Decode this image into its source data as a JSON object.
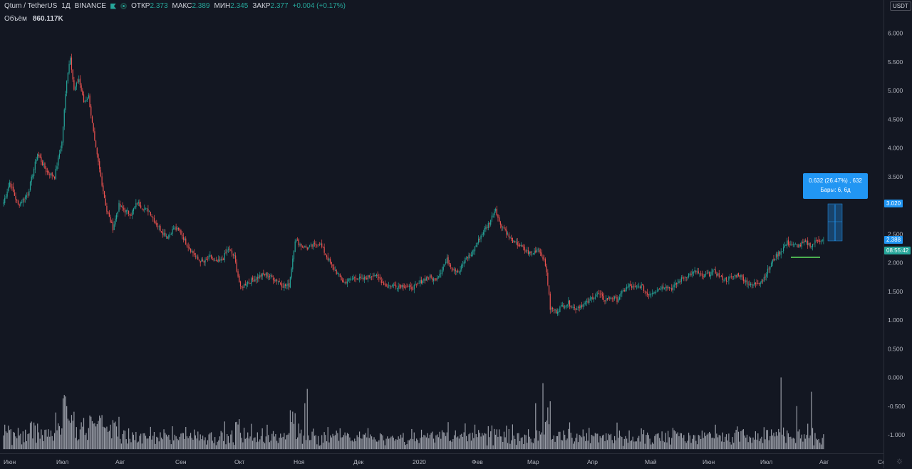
{
  "header": {
    "symbol": "Qtum / TetherUS",
    "interval": "1Д",
    "exchange": "BINANCE",
    "open_label": "ОТКР",
    "open": "2.373",
    "high_label": "МАКС",
    "high": "2.389",
    "low_label": "МИН",
    "low": "2.345",
    "close_label": "ЗАКР",
    "close": "2.377",
    "change": "+0.004 (+0.17%)"
  },
  "volume_legend": {
    "label": "Объём",
    "value": "860.117K"
  },
  "price_axis": {
    "currency": "USDT",
    "current_price": "2.388",
    "countdown": "08:55:42",
    "measure_top": "3.020"
  },
  "measure_tool": {
    "line1": "0.632 (26.47%) , 632",
    "line2": "Бары: 6, 6д"
  },
  "colors": {
    "up": "#26a69a",
    "down": "#ef5350",
    "volume": "#b2b5be",
    "background": "#131722",
    "accent": "#2196f3",
    "support_line": "#4caf50"
  },
  "icons": [
    "flag-icon",
    "status-dot-icon",
    "settings-icon"
  ],
  "chart_data": {
    "type": "candlestick",
    "ylim": [
      -1.25,
      6.25
    ],
    "yticks": [
      "6.000",
      "5.500",
      "5.000",
      "4.500",
      "4.000",
      "3.500",
      "3.000",
      "2.500",
      "2.000",
      "1.500",
      "1.000",
      "0.500",
      "0.000",
      "-0.500",
      "-1.000"
    ],
    "xticks": [
      "Июн",
      "Июл",
      "Авг",
      "Сен",
      "Окт",
      "Ноя",
      "Дек",
      "2020",
      "Фев",
      "Мар",
      "Апр",
      "Май",
      "Июн",
      "Июл",
      "Авг",
      "Сен"
    ],
    "grid": false,
    "close_series": [
      [
        0,
        3.05
      ],
      [
        5,
        3.4
      ],
      [
        12,
        3.0
      ],
      [
        20,
        3.2
      ],
      [
        28,
        3.9
      ],
      [
        35,
        3.6
      ],
      [
        42,
        3.5
      ],
      [
        48,
        4.1
      ],
      [
        52,
        5.2
      ],
      [
        55,
        5.6
      ],
      [
        58,
        5.0
      ],
      [
        62,
        5.2
      ],
      [
        66,
        4.8
      ],
      [
        70,
        4.9
      ],
      [
        75,
        4.1
      ],
      [
        80,
        3.5
      ],
      [
        85,
        2.9
      ],
      [
        90,
        2.6
      ],
      [
        95,
        3.0
      ],
      [
        100,
        2.9
      ],
      [
        105,
        2.85
      ],
      [
        110,
        3.05
      ],
      [
        115,
        2.95
      ],
      [
        120,
        2.9
      ],
      [
        125,
        2.7
      ],
      [
        130,
        2.55
      ],
      [
        135,
        2.45
      ],
      [
        140,
        2.6
      ],
      [
        145,
        2.55
      ],
      [
        150,
        2.35
      ],
      [
        155,
        2.2
      ],
      [
        160,
        2.05
      ],
      [
        165,
        2.0
      ],
      [
        170,
        2.1
      ],
      [
        175,
        2.0
      ],
      [
        180,
        2.05
      ],
      [
        185,
        2.25
      ],
      [
        190,
        2.1
      ],
      [
        195,
        1.55
      ],
      [
        200,
        1.65
      ],
      [
        205,
        1.7
      ],
      [
        210,
        1.75
      ],
      [
        215,
        1.8
      ],
      [
        220,
        1.75
      ],
      [
        225,
        1.7
      ],
      [
        230,
        1.6
      ],
      [
        235,
        1.6
      ],
      [
        240,
        2.4
      ],
      [
        245,
        2.3
      ],
      [
        250,
        2.25
      ],
      [
        255,
        2.3
      ],
      [
        260,
        2.35
      ],
      [
        265,
        2.15
      ],
      [
        270,
        1.95
      ],
      [
        275,
        1.8
      ],
      [
        280,
        1.65
      ],
      [
        285,
        1.7
      ],
      [
        290,
        1.75
      ],
      [
        295,
        1.7
      ],
      [
        300,
        1.75
      ],
      [
        305,
        1.8
      ],
      [
        310,
        1.7
      ],
      [
        315,
        1.6
      ],
      [
        320,
        1.6
      ],
      [
        325,
        1.6
      ],
      [
        330,
        1.6
      ],
      [
        335,
        1.55
      ],
      [
        340,
        1.6
      ],
      [
        345,
        1.7
      ],
      [
        350,
        1.75
      ],
      [
        355,
        1.7
      ],
      [
        360,
        1.85
      ],
      [
        365,
        2.05
      ],
      [
        370,
        1.9
      ],
      [
        375,
        1.85
      ],
      [
        380,
        2.05
      ],
      [
        385,
        2.15
      ],
      [
        390,
        2.35
      ],
      [
        395,
        2.55
      ],
      [
        400,
        2.7
      ],
      [
        405,
        2.95
      ],
      [
        408,
        2.7
      ],
      [
        412,
        2.6
      ],
      [
        416,
        2.45
      ],
      [
        420,
        2.35
      ],
      [
        425,
        2.3
      ],
      [
        430,
        2.2
      ],
      [
        435,
        2.15
      ],
      [
        440,
        2.25
      ],
      [
        444,
        2.1
      ],
      [
        447,
        1.85
      ],
      [
        450,
        1.2
      ],
      [
        455,
        1.15
      ],
      [
        460,
        1.25
      ],
      [
        465,
        1.3
      ],
      [
        470,
        1.2
      ],
      [
        475,
        1.25
      ],
      [
        480,
        1.3
      ],
      [
        485,
        1.4
      ],
      [
        490,
        1.45
      ],
      [
        495,
        1.35
      ],
      [
        500,
        1.4
      ],
      [
        505,
        1.35
      ],
      [
        510,
        1.5
      ],
      [
        515,
        1.6
      ],
      [
        520,
        1.55
      ],
      [
        525,
        1.6
      ],
      [
        530,
        1.45
      ],
      [
        535,
        1.5
      ],
      [
        540,
        1.55
      ],
      [
        545,
        1.6
      ],
      [
        550,
        1.55
      ],
      [
        555,
        1.65
      ],
      [
        560,
        1.75
      ],
      [
        565,
        1.8
      ],
      [
        570,
        1.85
      ],
      [
        575,
        1.75
      ],
      [
        580,
        1.8
      ],
      [
        585,
        1.85
      ],
      [
        590,
        1.75
      ],
      [
        595,
        1.7
      ],
      [
        600,
        1.75
      ],
      [
        605,
        1.8
      ],
      [
        610,
        1.7
      ],
      [
        615,
        1.6
      ],
      [
        620,
        1.65
      ],
      [
        625,
        1.7
      ],
      [
        630,
        1.9
      ],
      [
        635,
        2.1
      ],
      [
        640,
        2.2
      ],
      [
        645,
        2.35
      ],
      [
        650,
        2.3
      ],
      [
        655,
        2.3
      ],
      [
        660,
        2.35
      ],
      [
        665,
        2.3
      ],
      [
        670,
        2.4
      ],
      [
        675,
        2.38
      ]
    ],
    "volume_tallest_days": [
      [
        248,
        -0.45
      ],
      [
        250,
        -0.2
      ],
      [
        444,
        -0.1
      ],
      [
        438,
        -0.45
      ],
      [
        640,
        0.0
      ],
      [
        653,
        -0.5
      ],
      [
        665,
        -0.25
      ]
    ],
    "current_price": 2.388,
    "support_level": 2.09,
    "measure": {
      "from": 2.388,
      "to": 3.02,
      "change": 0.632,
      "percent": 26.47,
      "bars": 6
    }
  }
}
